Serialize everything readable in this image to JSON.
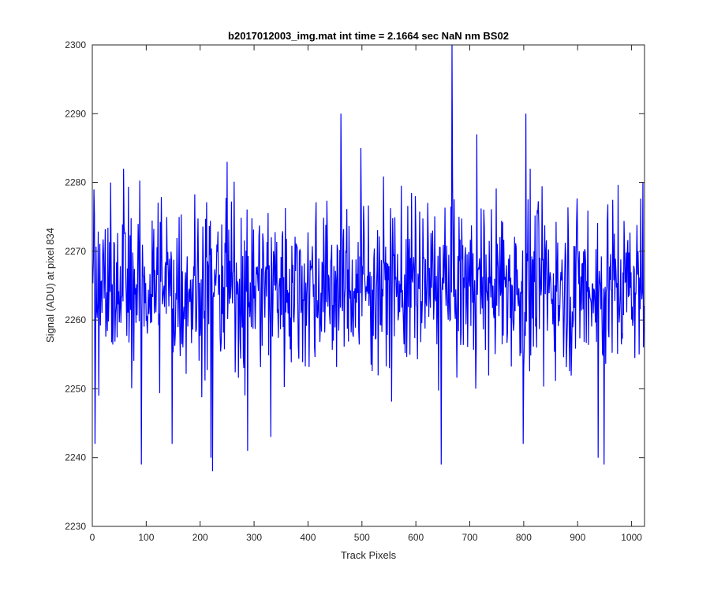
{
  "chart_data": {
    "type": "line",
    "title": "b2017012003_img.mat int time = 2.1664 sec  NaN nm BS02",
    "xlabel": "Track Pixels",
    "ylabel": "Signal (ADU) at pixel 834",
    "xlim": [
      0,
      1024
    ],
    "ylim": [
      2230,
      2300
    ],
    "x_ticks": [
      0,
      100,
      200,
      300,
      400,
      500,
      600,
      700,
      800,
      900,
      1000
    ],
    "y_ticks": [
      2230,
      2240,
      2250,
      2260,
      2270,
      2280,
      2290,
      2300
    ],
    "grid": false,
    "legend": "none",
    "series_color": "#0000ff",
    "series": [
      {
        "n_points": 1024,
        "baseline": 2265,
        "values_approx": {
          "4": 2242,
          "11": 2249,
          "33": 2280,
          "57": 2282,
          "90": 2239,
          "147": 2242,
          "219": 2240,
          "222": 2238,
          "249": 2283,
          "287": 2241,
          "330": 2243,
          "460": 2290,
          "497": 2285,
          "646": 2239,
          "666": 2300,
          "712": 2287,
          "798": 2242,
          "803": 2290,
          "937": 2240,
          "948": 2239,
          "1020": 2280
        }
      }
    ]
  }
}
